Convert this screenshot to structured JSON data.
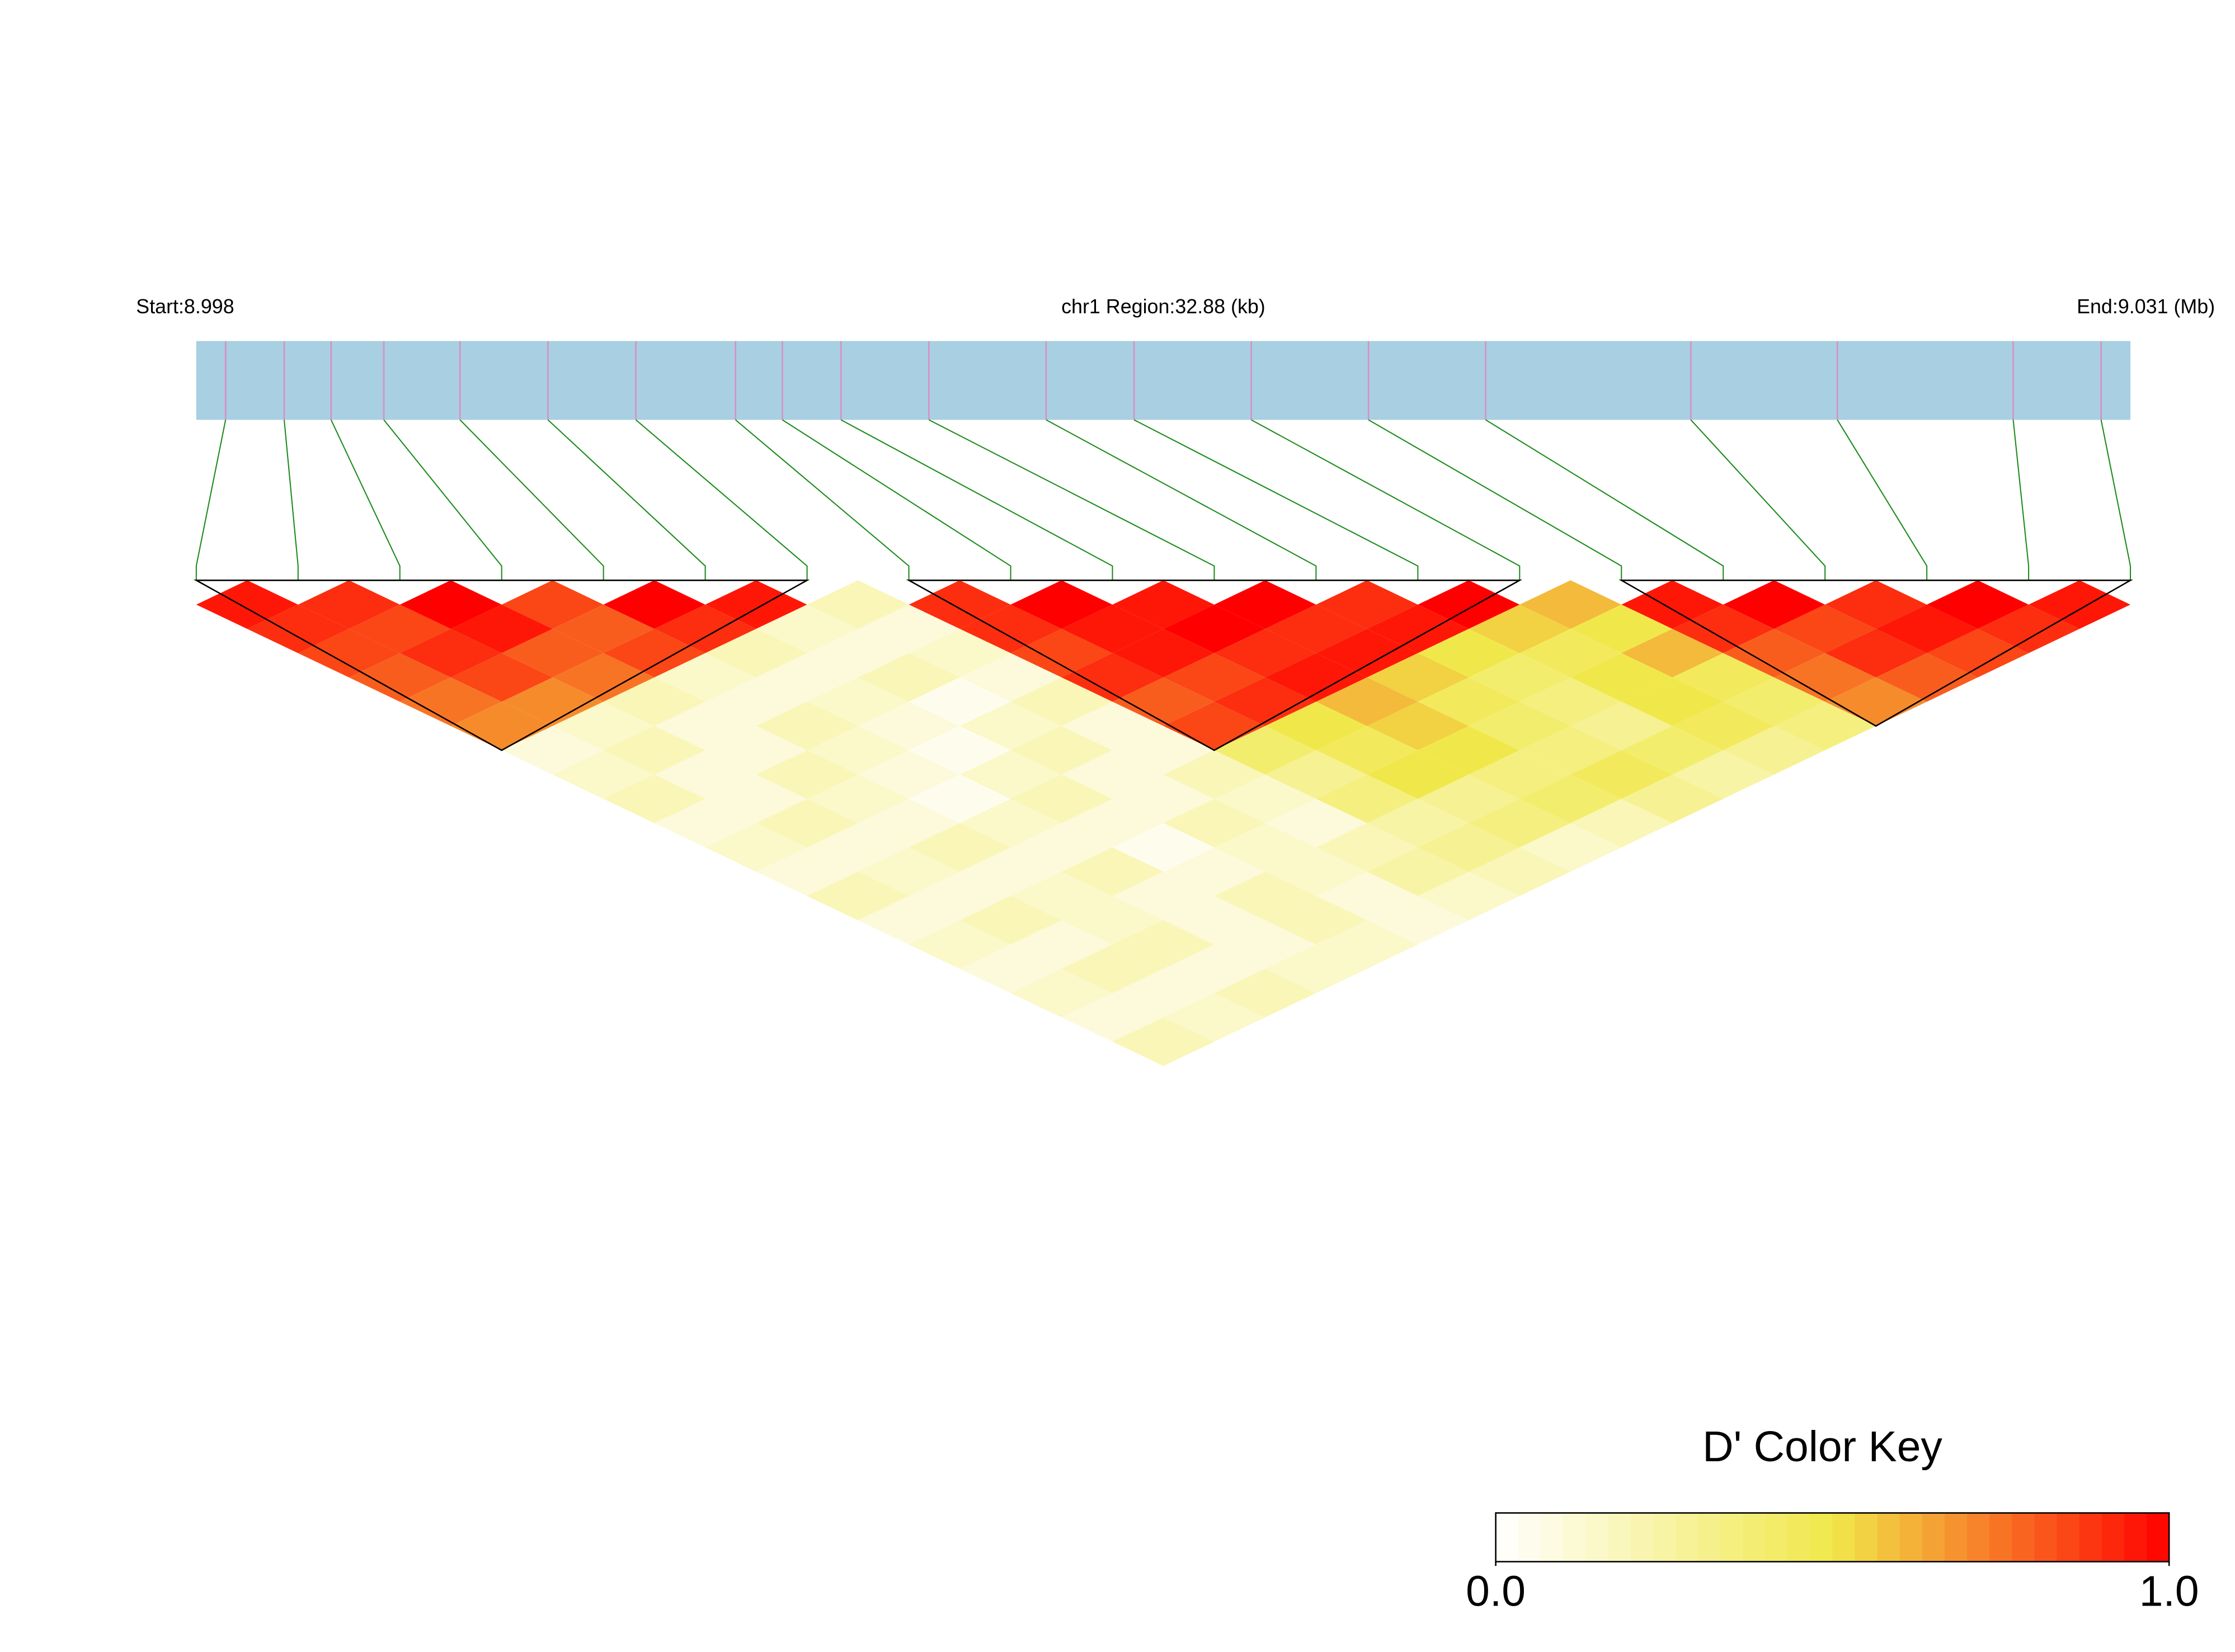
{
  "chart_data": {
    "type": "ld-heatmap",
    "start_label": "Start:8.998",
    "region_label": "chr1 Region:32.88 (kb)",
    "end_label": "End:9.031 (Mb)",
    "xlim": [
      8.998,
      9.031
    ],
    "positions": [
      8.9985,
      8.9995,
      9.0003,
      9.0012,
      9.0025,
      9.004,
      9.0055,
      9.0072,
      9.008,
      9.009,
      9.0105,
      9.0125,
      9.014,
      9.016,
      9.018,
      9.02,
      9.0235,
      9.026,
      9.029,
      9.0305
    ],
    "bar_color": "#a8cfe2",
    "marker_color": "#d98fc4",
    "link_color": "#1a8a1a",
    "values": [
      [
        0.95,
        0.9,
        1,
        0.85,
        1,
        0.95,
        0.2,
        0.9,
        1,
        0.95,
        1,
        0.9,
        1,
        0.6,
        0.95,
        1,
        0.9,
        1,
        0.95
      ],
      [
        0.9,
        0.85,
        0.95,
        0.8,
        0.9,
        0.15,
        0.1,
        0.9,
        0.95,
        1,
        0.9,
        0.95,
        0.55,
        0.5,
        0.9,
        0.85,
        0.95,
        0.9
      ],
      [
        0.85,
        0.9,
        0.8,
        0.85,
        0.2,
        0.1,
        0.15,
        0.85,
        0.95,
        0.9,
        0.95,
        0.5,
        0.45,
        0.6,
        0.8,
        0.9,
        0.85
      ],
      [
        0.8,
        0.85,
        0.75,
        0.15,
        0.1,
        0.2,
        0.1,
        0.9,
        0.85,
        0.95,
        0.55,
        0.4,
        0.5,
        0.45,
        0.75,
        0.8
      ],
      [
        0.75,
        0.7,
        0.2,
        0.1,
        0.15,
        0.05,
        0.2,
        0.8,
        0.9,
        0.6,
        0.45,
        0.35,
        0.5,
        0.4,
        0.7
      ],
      [
        0.7,
        0.15,
        0.1,
        0.2,
        0.1,
        0.15,
        0.1,
        0.85,
        0.5,
        0.55,
        0.4,
        0.3,
        0.45,
        0.35
      ],
      [
        0.1,
        0.2,
        0.1,
        0.15,
        0.05,
        0.2,
        0.1,
        0.4,
        0.45,
        0.5,
        0.35,
        0.4,
        0.3
      ],
      [
        0.15,
        0.1,
        0.2,
        0.1,
        0.15,
        0.1,
        0.2,
        0.3,
        0.5,
        0.35,
        0.45,
        0.25
      ],
      [
        0.2,
        0.1,
        0.15,
        0.05,
        0.2,
        0.1,
        0.15,
        0.35,
        0.3,
        0.4,
        0.3
      ],
      [
        0.1,
        0.2,
        0.1,
        0.15,
        0.1,
        0.2,
        0.1,
        0.25,
        0.35,
        0.2
      ],
      [
        0.15,
        0.1,
        0.2,
        0.1,
        0.05,
        0.15,
        0.2,
        0.3,
        0.15
      ],
      [
        0.1,
        0.15,
        0.1,
        0.2,
        0.1,
        0.15,
        0.25,
        0.2
      ],
      [
        0.2,
        0.1,
        0.15,
        0.1,
        0.2,
        0.1,
        0.15
      ],
      [
        0.1,
        0.2,
        0.15,
        0.1,
        0.2,
        0.1
      ],
      [
        0.15,
        0.1,
        0.2,
        0.1,
        0.15
      ],
      [
        0.1,
        0.2,
        0.1,
        0.15
      ],
      [
        0.15,
        0.1,
        0.2
      ],
      [
        0.1,
        0.15
      ],
      [
        0.2
      ]
    ],
    "blocks": [
      [
        0,
        6
      ],
      [
        7,
        13
      ],
      [
        14,
        19
      ]
    ],
    "legend": {
      "title": "D' Color Key",
      "clim": [
        0,
        1
      ],
      "ticks": [
        {
          "value": 0,
          "label": "0.0"
        },
        {
          "value": 1,
          "label": "1.0"
        }
      ],
      "colors": [
        "#ffffff",
        "#f0e84a",
        "#ff0000"
      ]
    }
  }
}
